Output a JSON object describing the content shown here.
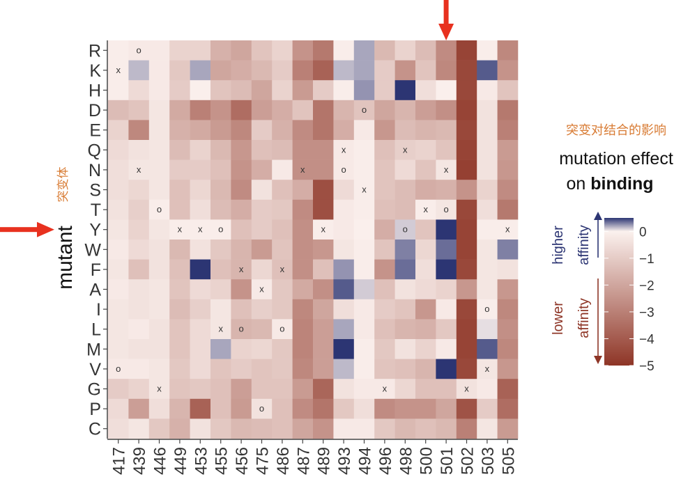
{
  "chart_data": {
    "type": "heatmap",
    "title_zh": "突变对结合的影响",
    "title_line1": "mutation effect",
    "title_line2_prefix": "on ",
    "title_line2_bold": "binding",
    "ylabel": "mutant",
    "ylabel_zh": "突变体",
    "columns": [
      "417",
      "439",
      "446",
      "449",
      "453",
      "455",
      "456",
      "475",
      "486",
      "487",
      "489",
      "493",
      "494",
      "496",
      "498",
      "500",
      "501",
      "502",
      "503",
      "505"
    ],
    "rows": [
      "R",
      "K",
      "H",
      "D",
      "E",
      "Q",
      "N",
      "S",
      "T",
      "Y",
      "W",
      "F",
      "A",
      "I",
      "L",
      "M",
      "V",
      "G",
      "P",
      "C"
    ],
    "colorbar": {
      "ticks": [
        0,
        -1,
        -2,
        -3,
        -4,
        -5
      ],
      "range": [
        -5,
        0.5
      ],
      "higher_line1": "higher",
      "higher_line2": "affinity",
      "lower_line1": "lower",
      "lower_line2": "affinity",
      "colors": {
        "high": "#2c3573",
        "mid": "#fbf1ee",
        "low": "#8e3526"
      }
    },
    "values": [
      [
        -0.1,
        -0.2,
        -0.2,
        -0.8,
        -0.8,
        -1.7,
        -2.0,
        -1.2,
        -0.8,
        -2.5,
        -3.2,
        -0.1,
        0.2,
        -1.5,
        -0.8,
        -1.4,
        -2.7,
        -4.6,
        -0.1,
        -2.8
      ],
      [
        -0.1,
        0.15,
        -0.2,
        -1.1,
        0.2,
        -2.0,
        -1.8,
        -1.5,
        -1.0,
        -3.0,
        -3.8,
        0.15,
        0.2,
        -1.0,
        -2.5,
        -1.2,
        -2.8,
        -4.5,
        0.4,
        -2.5
      ],
      [
        -0.1,
        -0.6,
        -0.2,
        -1.0,
        -0.05,
        -1.2,
        -1.4,
        -2.0,
        -0.8,
        -2.3,
        -1.0,
        -0.1,
        0.25,
        -1.0,
        0.6,
        -0.5,
        -0.05,
        -4.5,
        -0.2,
        -1.2
      ],
      [
        -1.4,
        -1.2,
        -0.3,
        -1.9,
        -3.0,
        -2.5,
        -3.5,
        -2.2,
        -1.8,
        -1.2,
        -3.3,
        -1.6,
        -1.2,
        -2.0,
        -1.6,
        -2.2,
        -2.6,
        -4.6,
        -0.4,
        -3.2
      ],
      [
        -0.8,
        -2.8,
        -0.3,
        -1.7,
        -1.9,
        -2.3,
        -2.8,
        -1.0,
        -1.7,
        -2.7,
        -3.3,
        -1.8,
        -0.2,
        -2.4,
        -1.4,
        -1.6,
        -1.5,
        -4.5,
        -0.4,
        -3.0
      ],
      [
        -0.6,
        -0.4,
        -0.3,
        -1.4,
        -0.8,
        -1.5,
        -2.4,
        -1.3,
        -1.4,
        -2.6,
        -2.6,
        -0.2,
        -0.1,
        -1.3,
        -0.9,
        -0.8,
        -1.2,
        -4.6,
        -0.4,
        -2.3
      ],
      [
        -0.5,
        -0.3,
        -0.3,
        -1.0,
        -1.0,
        -1.3,
        -2.5,
        -1.8,
        -0.2,
        -2.6,
        -2.6,
        -0.2,
        -0.1,
        -1.2,
        -0.6,
        -1.2,
        -0.3,
        -4.7,
        -0.4,
        -2.4
      ],
      [
        -0.5,
        -0.7,
        -0.3,
        -1.3,
        -0.7,
        -1.5,
        -2.7,
        -0.4,
        -1.3,
        -1.8,
        -4.3,
        -0.6,
        -0.1,
        -1.2,
        -1.4,
        -1.8,
        -1.7,
        -2.5,
        -0.8,
        -2.7
      ],
      [
        -0.4,
        -0.9,
        -0.1,
        -1.3,
        -0.5,
        -1.4,
        -1.8,
        -1.0,
        -1.1,
        -2.7,
        -4.3,
        -0.2,
        -0.1,
        -1.3,
        -1.4,
        -0.1,
        -0.3,
        -4.5,
        -0.5,
        -3.2
      ],
      [
        -0.3,
        -0.8,
        -0.3,
        -0.1,
        -0.1,
        -0.1,
        -1.3,
        -1.0,
        -1.3,
        -2.6,
        -0.1,
        -0.2,
        -0.05,
        -1.8,
        0.1,
        -1.2,
        0.7,
        -4.6,
        -0.1,
        -0.1
      ],
      [
        -0.2,
        -0.6,
        -0.4,
        -1.5,
        -0.4,
        -1.1,
        -1.6,
        -2.3,
        -1.2,
        -2.6,
        -2.4,
        -0.3,
        -0.1,
        -1.2,
        0.3,
        -0.7,
        0.35,
        -4.6,
        -0.3,
        0.3
      ],
      [
        -0.3,
        -1.3,
        -0.4,
        -1.3,
        0.7,
        -1.3,
        -1.6,
        -0.7,
        -1.3,
        -2.6,
        -1.3,
        0.25,
        -0.1,
        -2.5,
        0.35,
        -0.5,
        0.85,
        -4.5,
        -0.3,
        -0.4
      ],
      [
        -0.2,
        -0.4,
        -0.3,
        -1.2,
        -0.6,
        -0.8,
        -2.5,
        -0.2,
        -1.1,
        -1.9,
        -2.6,
        0.4,
        0.1,
        -1.3,
        -0.4,
        -0.6,
        -0.8,
        -2.4,
        -0.3,
        -2.4
      ],
      [
        -0.3,
        -0.4,
        -0.3,
        -1.4,
        -0.9,
        -0.3,
        -1.3,
        -0.9,
        -1.1,
        -2.8,
        -2.0,
        -0.5,
        -0.2,
        -1.0,
        -1.2,
        -2.4,
        -0.2,
        -4.5,
        -0.1,
        -2.8
      ],
      [
        -0.3,
        -0.2,
        -0.4,
        -1.2,
        -0.6,
        -0.3,
        -1.6,
        -1.5,
        -0.2,
        -2.9,
        -2.2,
        0.2,
        -0.2,
        -1.3,
        -1.6,
        -1.7,
        -1.1,
        -4.6,
        0.05,
        -2.6
      ],
      [
        -0.3,
        -0.4,
        -0.4,
        -1.2,
        -0.6,
        0.2,
        -0.8,
        -0.7,
        -1.1,
        -2.9,
        -2.2,
        0.7,
        -0.1,
        -1.1,
        -0.4,
        -0.8,
        -0.2,
        -4.6,
        0.4,
        -2.8
      ],
      [
        -0.2,
        -0.2,
        -0.3,
        -1.1,
        -0.6,
        -1.2,
        -1.0,
        -1.2,
        -1.1,
        -2.8,
        -2.2,
        0.15,
        -0.1,
        -1.2,
        -1.3,
        -1.6,
        0.55,
        -4.5,
        -0.3,
        -2.4
      ],
      [
        -1.0,
        -0.8,
        -0.3,
        -1.2,
        -1.1,
        -1.3,
        -2.2,
        -1.2,
        -1.2,
        -2.3,
        -3.7,
        -0.4,
        -0.2,
        -0.2,
        -0.7,
        -1.3,
        -1.3,
        -0.4,
        -0.2,
        -3.8
      ],
      [
        -0.6,
        -2.2,
        -0.5,
        -1.6,
        -3.8,
        -1.3,
        -2.3,
        -0.4,
        -1.3,
        -2.7,
        -3.3,
        -1.1,
        -0.5,
        -2.7,
        -2.5,
        -2.5,
        -2.0,
        -4.2,
        -1.0,
        -3.5
      ],
      [
        -0.5,
        -0.3,
        -1.1,
        -1.7,
        -0.4,
        -1.1,
        -1.5,
        -1.4,
        -1.3,
        -2.0,
        -2.5,
        -0.2,
        -0.2,
        -1.1,
        -1.5,
        -1.3,
        -1.5,
        -3.0,
        -0.3,
        -2.3
      ]
    ],
    "markers": [
      {
        "row": "R",
        "col": "439",
        "symbol": "o"
      },
      {
        "row": "K",
        "col": "417",
        "symbol": "x"
      },
      {
        "row": "D",
        "col": "494",
        "symbol": "o"
      },
      {
        "row": "Q",
        "col": "493",
        "symbol": "x"
      },
      {
        "row": "Q",
        "col": "498",
        "symbol": "x"
      },
      {
        "row": "N",
        "col": "439",
        "symbol": "x"
      },
      {
        "row": "N",
        "col": "487",
        "symbol": "x"
      },
      {
        "row": "N",
        "col": "493",
        "symbol": "o"
      },
      {
        "row": "N",
        "col": "501",
        "symbol": "x"
      },
      {
        "row": "S",
        "col": "494",
        "symbol": "x"
      },
      {
        "row": "T",
        "col": "446",
        "symbol": "o"
      },
      {
        "row": "T",
        "col": "500",
        "symbol": "x"
      },
      {
        "row": "T",
        "col": "501",
        "symbol": "o"
      },
      {
        "row": "Y",
        "col": "449",
        "symbol": "x"
      },
      {
        "row": "Y",
        "col": "453",
        "symbol": "x"
      },
      {
        "row": "Y",
        "col": "455",
        "symbol": "o"
      },
      {
        "row": "Y",
        "col": "489",
        "symbol": "x"
      },
      {
        "row": "Y",
        "col": "498",
        "symbol": "o"
      },
      {
        "row": "Y",
        "col": "505",
        "symbol": "x"
      },
      {
        "row": "F",
        "col": "456",
        "symbol": "x"
      },
      {
        "row": "F",
        "col": "486",
        "symbol": "x"
      },
      {
        "row": "A",
        "col": "475",
        "symbol": "x"
      },
      {
        "row": "I",
        "col": "503",
        "symbol": "o"
      },
      {
        "row": "L",
        "col": "455",
        "symbol": "x"
      },
      {
        "row": "L",
        "col": "456",
        "symbol": "o"
      },
      {
        "row": "L",
        "col": "486",
        "symbol": "o"
      },
      {
        "row": "V",
        "col": "417",
        "symbol": "o"
      },
      {
        "row": "V",
        "col": "503",
        "symbol": "x"
      },
      {
        "row": "G",
        "col": "446",
        "symbol": "x"
      },
      {
        "row": "G",
        "col": "496",
        "symbol": "x"
      },
      {
        "row": "G",
        "col": "502",
        "symbol": "x"
      },
      {
        "row": "P",
        "col": "475",
        "symbol": "o"
      }
    ],
    "arrows": [
      {
        "target": "column",
        "ref": "501",
        "direction": "down",
        "color": "#e8311f"
      },
      {
        "target": "row-label",
        "ref": "Y",
        "direction": "right",
        "color": "#e8311f"
      }
    ],
    "colors": {
      "zh_text": "#d87b33",
      "higher_text": "#2c3573",
      "lower_text": "#8e3526",
      "axis_text": "#333333"
    }
  }
}
